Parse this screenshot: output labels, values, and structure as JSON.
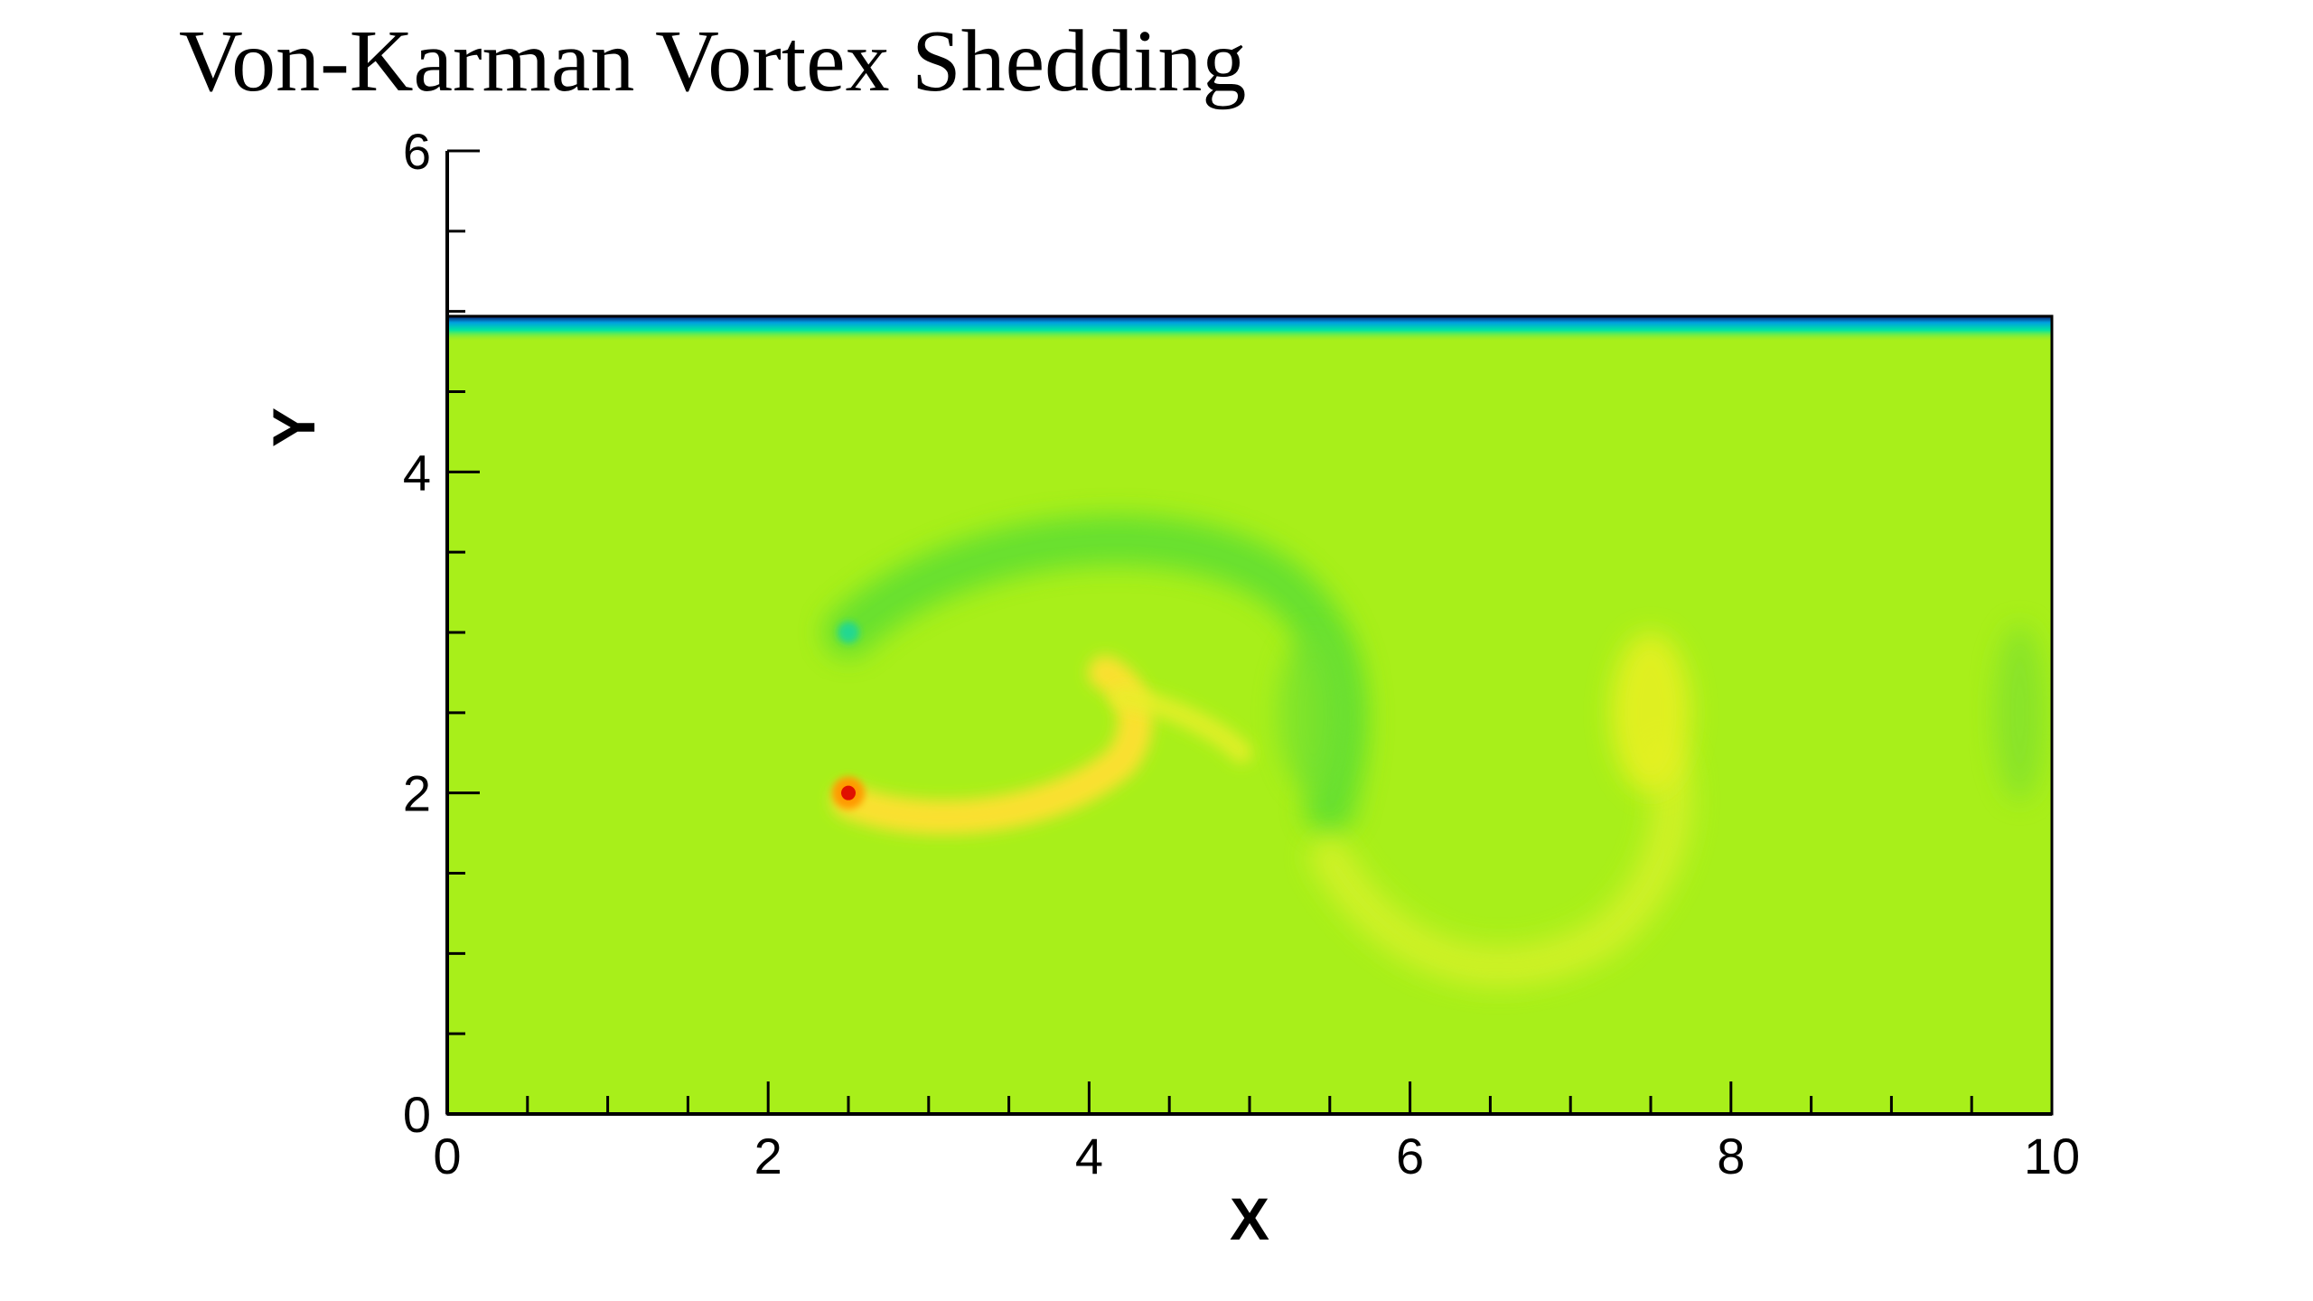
{
  "chart_data": {
    "type": "heatmap",
    "title": "Von-Karman Vortex Shedding",
    "xlabel": "X",
    "ylabel": "Y",
    "xlim": [
      0,
      10
    ],
    "ylim": [
      0,
      6
    ],
    "domain_top": 5,
    "x_ticks_major": [
      0,
      2,
      4,
      6,
      8,
      10
    ],
    "y_ticks_major": [
      0,
      2,
      4,
      6
    ],
    "minor_tick_step": 0.5,
    "grid": false,
    "legend": "none",
    "colormap": [
      "#0000ff",
      "#00c8ff",
      "#00e676",
      "#a8ef1a",
      "#ffff00",
      "#ff8000",
      "#ff0000"
    ],
    "background_level": "#a8ef1a",
    "features": [
      {
        "name": "cylinder-upper-edge",
        "x": 2.5,
        "y": 3.0,
        "level": "#22d890"
      },
      {
        "name": "cylinder-lower-edge",
        "x": 2.5,
        "y": 2.0,
        "level": "#e01000"
      },
      {
        "name": "upper-shear-layer",
        "x": [
          2.5,
          5.5
        ],
        "y": [
          3.0,
          2.4
        ],
        "level": "#60df30"
      },
      {
        "name": "lower-shear-layer",
        "x": [
          2.5,
          4.3
        ],
        "y": [
          1.9,
          2.7
        ],
        "level": "#ffe030"
      },
      {
        "name": "shed-vortex-1",
        "x": 7.5,
        "y": 2.5,
        "level": "#e6f020"
      },
      {
        "name": "shed-vortex-2",
        "x": 9.8,
        "y": 2.5,
        "level": "#86e32a"
      },
      {
        "name": "wall-boundary-layer",
        "x": [
          0,
          10
        ],
        "y": 4.9,
        "level": "#00c8ff"
      }
    ]
  }
}
